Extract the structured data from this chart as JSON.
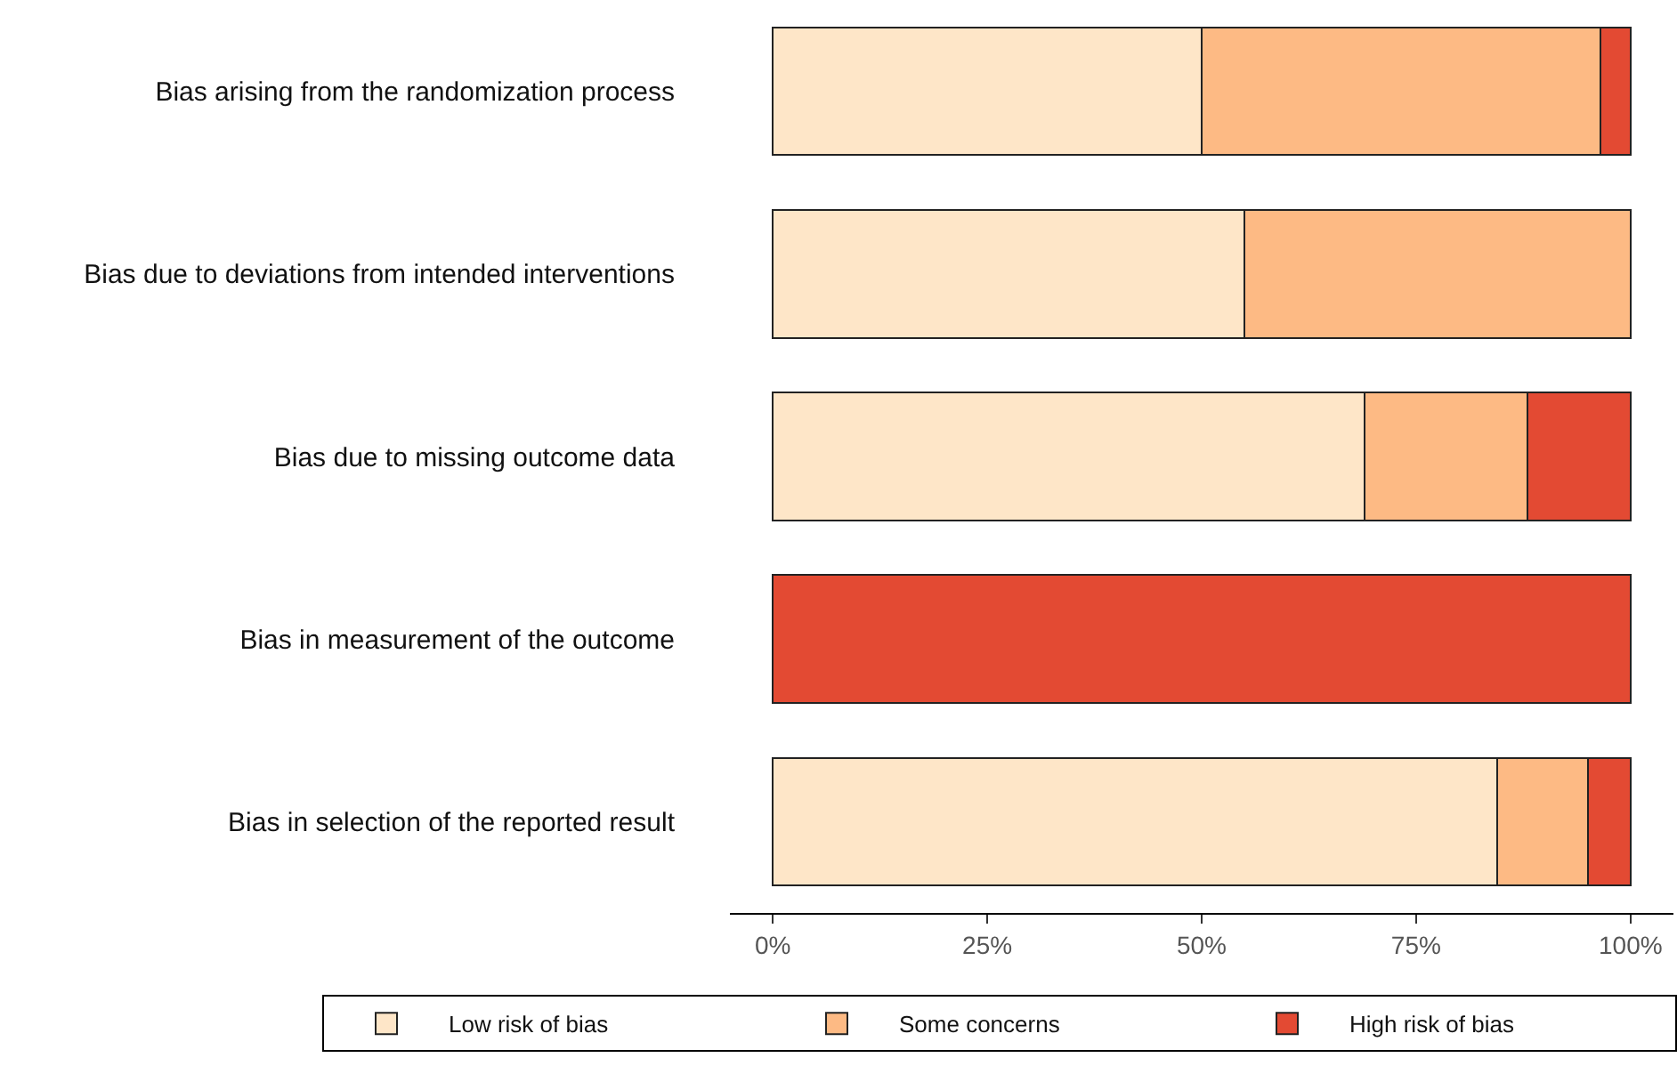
{
  "chart_data": {
    "type": "bar",
    "orientation": "horizontal",
    "stacked": true,
    "categories": [
      "Bias arising from the randomization process",
      "Bias due to deviations from intended interventions",
      "Bias due to missing outcome data",
      "Bias in measurement of the outcome",
      "Bias in selection of the reported result"
    ],
    "series": [
      {
        "name": "Low risk of bias",
        "color": "#fee6c8",
        "values": [
          50,
          55,
          69,
          null,
          84.5
        ]
      },
      {
        "name": "Some concerns",
        "color": "#fdba84",
        "values": [
          46.5,
          45,
          19,
          null,
          10.5
        ]
      },
      {
        "name": "High risk of bias",
        "color": "#e34a33",
        "values": [
          3.5,
          null,
          12,
          100,
          5
        ]
      }
    ],
    "xlim": [
      -5,
      105
    ],
    "xticks": [
      {
        "value": 0,
        "label": "0%"
      },
      {
        "value": 25,
        "label": "25%"
      },
      {
        "value": 50,
        "label": "50%"
      },
      {
        "value": 75,
        "label": "75%"
      },
      {
        "value": 100,
        "label": "100%"
      }
    ],
    "legend": "bottom"
  }
}
